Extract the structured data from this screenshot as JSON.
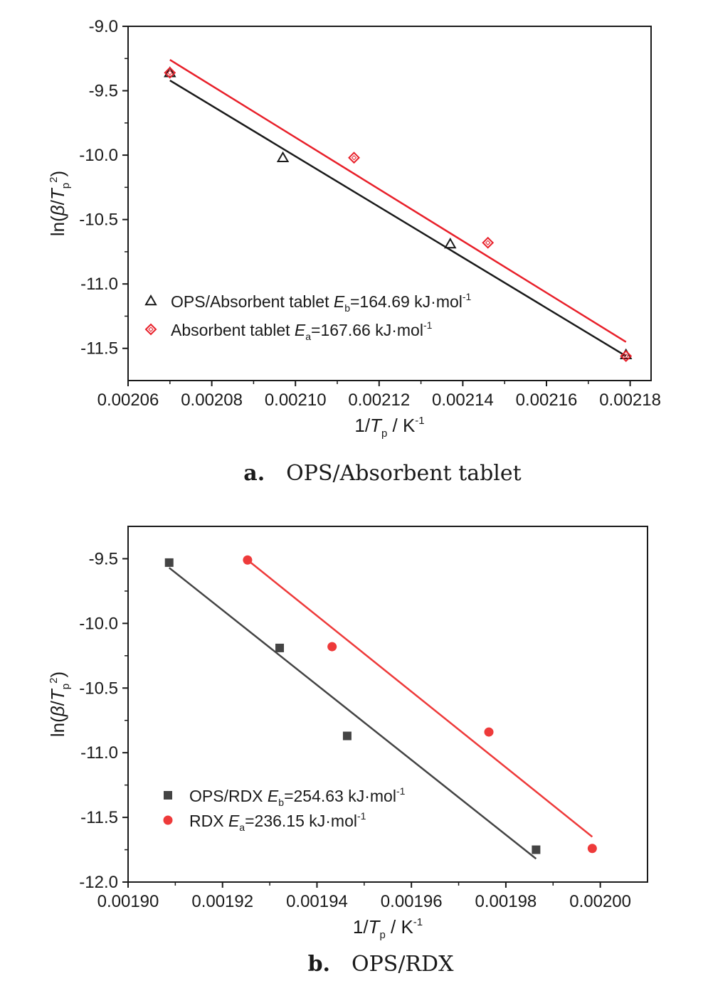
{
  "colors": {
    "black": "#1a1a1a",
    "red": "#e8202a",
    "gray": "#444444",
    "red_dot": "#ee3a3a"
  },
  "chart_data": [
    {
      "type": "scatter",
      "caption_letter": "a.",
      "caption_text": "OPS/Absorbent tablet",
      "xlabel_pre": "1/",
      "xlabel_var": "T",
      "xlabel_sub": "p",
      "xlabel_post": " / K",
      "xlabel_sup": "-1",
      "ylabel_pre": "ln(",
      "ylabel_beta": "β",
      "ylabel_slash": "/",
      "ylabel_var": "T",
      "ylabel_sub": "p",
      "ylabel_sup": "2",
      "ylabel_post": ")",
      "xlim": [
        0.00206,
        0.002185
      ],
      "ylim": [
        -11.75,
        -9.0
      ],
      "xticks": [
        0.00206,
        0.00208,
        0.0021,
        0.00212,
        0.00214,
        0.00216,
        0.00218
      ],
      "xtick_labels": [
        "0.00206",
        "0.00208",
        "0.00210",
        "0.00212",
        "0.00214",
        "0.00216",
        "0.00218"
      ],
      "yticks": [
        -9.0,
        -9.5,
        -10.0,
        -10.5,
        -11.0,
        -11.5
      ],
      "ytick_labels": [
        "-9.0",
        "-9.5",
        "-10.0",
        "-10.5",
        "-11.0",
        "-11.5"
      ],
      "legend_position": "bottom-left",
      "series": [
        {
          "marker": "triangle-open",
          "color": "#1a1a1a",
          "legend_pre": "OPS/Absorbent tablet ",
          "legend_var": "E",
          "legend_sub": "b",
          "legend_post": "=164.69 kJ·mol",
          "legend_sup": "-1",
          "x": [
            0.00207,
            0.002097,
            0.002137,
            0.002179
          ],
          "y": [
            -9.36,
            -10.02,
            -10.69,
            -11.55
          ],
          "fit": {
            "x": [
              0.00207,
              0.002179
            ],
            "y": [
              -9.42,
              -11.56
            ]
          }
        },
        {
          "marker": "diamond-open",
          "color": "#e8202a",
          "legend_pre": "Absorbent tablet ",
          "legend_var": "E",
          "legend_sub": "a",
          "legend_post": "=167.66 kJ·mol",
          "legend_sup": "-1",
          "x": [
            0.00207,
            0.002114,
            0.002146,
            0.002179
          ],
          "y": [
            -9.36,
            -10.02,
            -10.68,
            -11.56
          ],
          "fit": {
            "x": [
              0.00207,
              0.002179
            ],
            "y": [
              -9.26,
              -11.45
            ]
          }
        }
      ]
    },
    {
      "type": "scatter",
      "caption_letter": "b.",
      "caption_text": "OPS/RDX",
      "xlabel_pre": "1/",
      "xlabel_var": "T",
      "xlabel_sub": "p",
      "xlabel_post": " / K",
      "xlabel_sup": "-1",
      "ylabel_pre": "ln(",
      "ylabel_beta": "β",
      "ylabel_slash": "/",
      "ylabel_var": "T",
      "ylabel_sub": "p",
      "ylabel_sup": "2",
      "ylabel_post": ")",
      "xlim": [
        0.0019,
        0.00201
      ],
      "ylim": [
        -12.0,
        -9.25
      ],
      "xticks": [
        0.0019,
        0.00192,
        0.00194,
        0.00196,
        0.00198,
        0.002
      ],
      "xtick_labels": [
        "0.00190",
        "0.00192",
        "0.00194",
        "0.00196",
        "0.00198",
        "0.00200"
      ],
      "yticks": [
        -9.5,
        -10.0,
        -10.5,
        -11.0,
        -11.5,
        -12.0
      ],
      "ytick_labels": [
        "-9.5",
        "-10.0",
        "-10.5",
        "-11.0",
        "-11.5",
        "-12.0"
      ],
      "legend_position": "bottom-left",
      "series": [
        {
          "marker": "square-filled",
          "color": "#444444",
          "legend_pre": "OPS/RDX ",
          "legend_var": "E",
          "legend_sub": "b",
          "legend_post": "=254.63 kJ·mol",
          "legend_sup": "-1",
          "x": [
            0.0019087,
            0.0019321,
            0.0019464,
            0.0019864
          ],
          "y": [
            -9.53,
            -10.19,
            -10.87,
            -11.75
          ],
          "fit": {
            "x": [
              0.0019087,
              0.0019864
            ],
            "y": [
              -9.57,
              -11.82
            ]
          }
        },
        {
          "marker": "circle-filled",
          "color": "#ee3a3a",
          "legend_pre": "RDX ",
          "legend_var": "E",
          "legend_sub": "a",
          "legend_post": "=236.15 kJ·mol",
          "legend_sup": "-1",
          "x": [
            0.0019253,
            0.0019432,
            0.0019764,
            0.0019983
          ],
          "y": [
            -9.51,
            -10.18,
            -10.84,
            -11.74
          ],
          "fit": {
            "x": [
              0.0019253,
              0.0019983
            ],
            "y": [
              -9.51,
              -11.65
            ]
          }
        }
      ]
    }
  ]
}
